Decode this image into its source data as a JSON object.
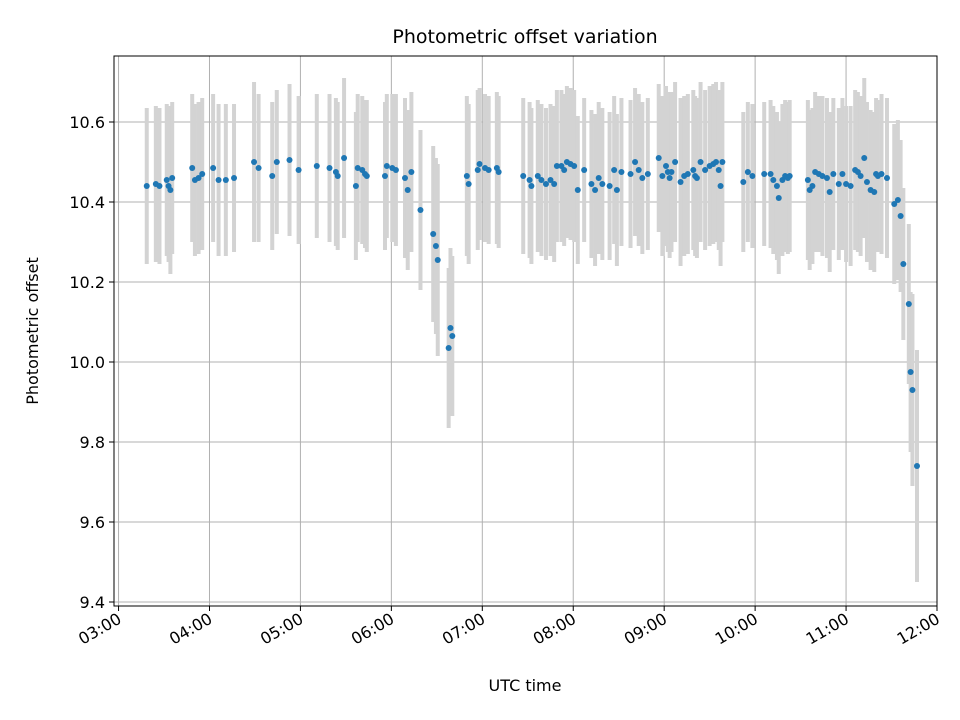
{
  "chart_data": {
    "type": "scatter",
    "title": "Photometric offset variation",
    "xlabel": "UTC time",
    "ylabel": "Photometric offset",
    "grid": true,
    "xlim": [
      2.95,
      12.0
    ],
    "ylim": [
      9.39,
      10.765
    ],
    "x_ticks": [
      {
        "value": 3,
        "label": "03:00"
      },
      {
        "value": 4,
        "label": "04:00"
      },
      {
        "value": 5,
        "label": "05:00"
      },
      {
        "value": 6,
        "label": "06:00"
      },
      {
        "value": 7,
        "label": "07:00"
      },
      {
        "value": 8,
        "label": "08:00"
      },
      {
        "value": 9,
        "label": "09:00"
      },
      {
        "value": 10,
        "label": "10:00"
      },
      {
        "value": 11,
        "label": "11:00"
      },
      {
        "value": 12,
        "label": "12:00"
      }
    ],
    "y_ticks": [
      {
        "value": 9.4,
        "label": "9.4"
      },
      {
        "value": 9.6,
        "label": "9.6"
      },
      {
        "value": 9.8,
        "label": "9.8"
      },
      {
        "value": 10.0,
        "label": "10.0"
      },
      {
        "value": 10.2,
        "label": "10.2"
      },
      {
        "value": 10.4,
        "label": "10.4"
      },
      {
        "value": 10.6,
        "label": "10.6"
      }
    ],
    "point_color": "#1f77b4",
    "errorbar_color": "#d3d3d3",
    "series": [
      {
        "name": "offset",
        "points": [
          [
            3.31,
            10.44,
            0.195
          ],
          [
            3.41,
            10.445,
            0.195
          ],
          [
            3.45,
            10.44,
            0.195
          ],
          [
            3.53,
            10.455,
            0.19
          ],
          [
            3.55,
            10.44,
            0.19
          ],
          [
            3.57,
            10.43,
            0.21
          ],
          [
            3.59,
            10.46,
            0.19
          ],
          [
            3.81,
            10.485,
            0.185
          ],
          [
            3.84,
            10.455,
            0.19
          ],
          [
            3.88,
            10.46,
            0.19
          ],
          [
            3.92,
            10.47,
            0.19
          ],
          [
            4.04,
            10.485,
            0.185
          ],
          [
            4.1,
            10.455,
            0.19
          ],
          [
            4.18,
            10.455,
            0.19
          ],
          [
            4.27,
            10.46,
            0.185
          ],
          [
            4.49,
            10.5,
            0.2
          ],
          [
            4.54,
            10.485,
            0.185
          ],
          [
            4.69,
            10.465,
            0.185
          ],
          [
            4.74,
            10.5,
            0.18
          ],
          [
            4.88,
            10.505,
            0.19
          ],
          [
            4.98,
            10.48,
            0.185
          ],
          [
            5.18,
            10.49,
            0.18
          ],
          [
            5.32,
            10.485,
            0.185
          ],
          [
            5.39,
            10.475,
            0.185
          ],
          [
            5.41,
            10.465,
            0.185
          ],
          [
            5.48,
            10.51,
            0.2
          ],
          [
            5.61,
            10.44,
            0.185
          ],
          [
            5.63,
            10.485,
            0.185
          ],
          [
            5.68,
            10.48,
            0.185
          ],
          [
            5.71,
            10.47,
            0.185
          ],
          [
            5.73,
            10.465,
            0.19
          ],
          [
            5.93,
            10.465,
            0.185
          ],
          [
            5.95,
            10.49,
            0.18
          ],
          [
            6.01,
            10.485,
            0.185
          ],
          [
            6.05,
            10.48,
            0.19
          ],
          [
            6.15,
            10.46,
            0.2
          ],
          [
            6.18,
            10.43,
            0.2
          ],
          [
            6.22,
            10.475,
            0.2
          ],
          [
            6.32,
            10.38,
            0.2
          ],
          [
            6.46,
            10.32,
            0.22
          ],
          [
            6.49,
            10.29,
            0.22
          ],
          [
            6.51,
            10.255,
            0.24
          ],
          [
            6.63,
            10.035,
            0.2
          ],
          [
            6.65,
            10.085,
            0.2
          ],
          [
            6.67,
            10.065,
            0.2
          ],
          [
            6.83,
            10.465,
            0.2
          ],
          [
            6.85,
            10.445,
            0.2
          ],
          [
            6.95,
            10.48,
            0.2
          ],
          [
            6.97,
            10.495,
            0.19
          ],
          [
            7.03,
            10.485,
            0.185
          ],
          [
            7.07,
            10.48,
            0.185
          ],
          [
            7.16,
            10.485,
            0.19
          ],
          [
            7.18,
            10.475,
            0.19
          ],
          [
            7.45,
            10.465,
            0.195
          ],
          [
            7.52,
            10.455,
            0.195
          ],
          [
            7.54,
            10.44,
            0.195
          ],
          [
            7.61,
            10.465,
            0.19
          ],
          [
            7.65,
            10.455,
            0.19
          ],
          [
            7.7,
            10.445,
            0.19
          ],
          [
            7.75,
            10.455,
            0.19
          ],
          [
            7.79,
            10.445,
            0.195
          ],
          [
            7.82,
            10.49,
            0.19
          ],
          [
            7.87,
            10.49,
            0.19
          ],
          [
            7.9,
            10.48,
            0.19
          ],
          [
            7.93,
            10.5,
            0.19
          ],
          [
            7.97,
            10.495,
            0.19
          ],
          [
            8.01,
            10.49,
            0.19
          ],
          [
            8.05,
            10.43,
            0.185
          ],
          [
            8.12,
            10.48,
            0.18
          ],
          [
            8.2,
            10.445,
            0.185
          ],
          [
            8.24,
            10.43,
            0.19
          ],
          [
            8.28,
            10.46,
            0.19
          ],
          [
            8.32,
            10.445,
            0.19
          ],
          [
            8.4,
            10.44,
            0.185
          ],
          [
            8.45,
            10.48,
            0.185
          ],
          [
            8.48,
            10.43,
            0.19
          ],
          [
            8.53,
            10.475,
            0.185
          ],
          [
            8.63,
            10.47,
            0.185
          ],
          [
            8.68,
            10.5,
            0.185
          ],
          [
            8.72,
            10.48,
            0.19
          ],
          [
            8.76,
            10.46,
            0.19
          ],
          [
            8.82,
            10.47,
            0.19
          ],
          [
            8.94,
            10.51,
            0.185
          ],
          [
            8.98,
            10.465,
            0.2
          ],
          [
            9.02,
            10.49,
            0.2
          ],
          [
            9.04,
            10.475,
            0.2
          ],
          [
            9.06,
            10.46,
            0.2
          ],
          [
            9.08,
            10.475,
            0.2
          ],
          [
            9.12,
            10.5,
            0.2
          ],
          [
            9.18,
            10.45,
            0.21
          ],
          [
            9.22,
            10.465,
            0.2
          ],
          [
            9.26,
            10.47,
            0.2
          ],
          [
            9.32,
            10.48,
            0.2
          ],
          [
            9.34,
            10.465,
            0.2
          ],
          [
            9.36,
            10.46,
            0.2
          ],
          [
            9.4,
            10.5,
            0.2
          ],
          [
            9.45,
            10.48,
            0.2
          ],
          [
            9.5,
            10.49,
            0.2
          ],
          [
            9.54,
            10.495,
            0.2
          ],
          [
            9.57,
            10.5,
            0.2
          ],
          [
            9.6,
            10.48,
            0.2
          ],
          [
            9.62,
            10.44,
            0.2
          ],
          [
            9.64,
            10.5,
            0.2
          ],
          [
            9.87,
            10.45,
            0.175
          ],
          [
            9.92,
            10.475,
            0.175
          ],
          [
            9.97,
            10.465,
            0.18
          ],
          [
            10.1,
            10.47,
            0.18
          ],
          [
            10.17,
            10.47,
            0.185
          ],
          [
            10.2,
            10.455,
            0.185
          ],
          [
            10.24,
            10.44,
            0.185
          ],
          [
            10.26,
            10.41,
            0.19
          ],
          [
            10.3,
            10.455,
            0.19
          ],
          [
            10.33,
            10.465,
            0.19
          ],
          [
            10.36,
            10.46,
            0.19
          ],
          [
            10.38,
            10.465,
            0.19
          ],
          [
            10.58,
            10.455,
            0.2
          ],
          [
            10.6,
            10.43,
            0.2
          ],
          [
            10.63,
            10.44,
            0.195
          ],
          [
            10.66,
            10.475,
            0.2
          ],
          [
            10.7,
            10.47,
            0.195
          ],
          [
            10.74,
            10.465,
            0.2
          ],
          [
            10.79,
            10.46,
            0.2
          ],
          [
            10.82,
            10.425,
            0.2
          ],
          [
            10.86,
            10.47,
            0.19
          ],
          [
            10.92,
            10.445,
            0.19
          ],
          [
            10.96,
            10.47,
            0.19
          ],
          [
            11.0,
            10.445,
            0.195
          ],
          [
            11.05,
            10.44,
            0.2
          ],
          [
            11.1,
            10.48,
            0.2
          ],
          [
            11.13,
            10.475,
            0.2
          ],
          [
            11.16,
            10.465,
            0.2
          ],
          [
            11.2,
            10.51,
            0.2
          ],
          [
            11.23,
            10.45,
            0.2
          ],
          [
            11.27,
            10.43,
            0.2
          ],
          [
            11.31,
            10.425,
            0.2
          ],
          [
            11.33,
            10.47,
            0.19
          ],
          [
            11.35,
            10.465,
            0.19
          ],
          [
            11.39,
            10.47,
            0.2
          ],
          [
            11.45,
            10.46,
            0.2
          ],
          [
            11.53,
            10.395,
            0.2
          ],
          [
            11.57,
            10.405,
            0.2
          ],
          [
            11.6,
            10.365,
            0.19
          ],
          [
            11.63,
            10.245,
            0.19
          ],
          [
            11.69,
            10.145,
            0.2
          ],
          [
            11.71,
            9.975,
            0.2
          ],
          [
            11.73,
            9.93,
            0.24
          ],
          [
            11.78,
            9.74,
            0.29
          ]
        ]
      }
    ]
  }
}
